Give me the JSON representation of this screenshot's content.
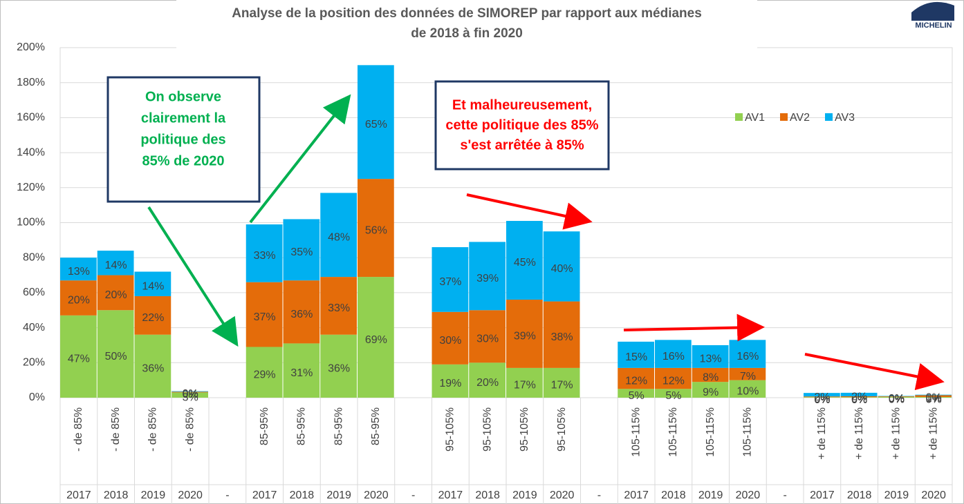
{
  "chart_data": {
    "type": "stacked_bar",
    "title": [
      "Analyse de la position des données de SIMOREP par rapport aux médianes",
      "de 2018 à fin 2020"
    ],
    "logo": "MICHELIN",
    "categories": [
      "- de 85%",
      "- de 85%",
      "- de 85%",
      "- de 85%",
      null,
      "85-95%",
      "85-95%",
      "85-95%",
      "85-95%",
      null,
      "95-105%",
      "95-105%",
      "95-105%",
      "95-105%",
      null,
      "105-115%",
      "105-115%",
      "105-115%",
      "105-115%",
      null,
      "+ de 115%",
      "+ de 115%",
      "+ de 115%",
      "+ de 115%"
    ],
    "category_years": [
      "2017",
      "2018",
      "2019",
      "2020",
      "-",
      "2017",
      "2018",
      "2019",
      "2020",
      "-",
      "2017",
      "2018",
      "2019",
      "2020",
      "-",
      "2017",
      "2018",
      "2019",
      "2020",
      "-",
      "2017",
      "2018",
      "2019",
      "2020"
    ],
    "series": [
      {
        "name": "AV1",
        "color": "#92d050",
        "values": [
          47,
          50,
          36,
          3,
          null,
          29,
          31,
          36,
          69,
          null,
          19,
          20,
          17,
          17,
          null,
          5,
          5,
          9,
          10,
          null,
          0.3,
          0.3,
          0.5,
          0.4
        ],
        "value_labels": [
          "47%",
          "50%",
          "36%",
          "3%",
          null,
          "29%",
          "31%",
          "36%",
          "69%",
          null,
          "19%",
          "20%",
          "17%",
          "17%",
          null,
          "5%",
          "5%",
          "9%",
          "10%",
          null,
          "0%",
          "0%",
          "0%",
          "0%"
        ]
      },
      {
        "name": "AV2",
        "color": "#e46c0a",
        "values": [
          20,
          20,
          22,
          0.4,
          null,
          37,
          36,
          33,
          56,
          null,
          30,
          30,
          39,
          38,
          null,
          12,
          12,
          8,
          7,
          null,
          0.4,
          0.5,
          0.3,
          1
        ],
        "value_labels": [
          "20%",
          "20%",
          "22%",
          "0%",
          null,
          "37%",
          "36%",
          "33%",
          "56%",
          null,
          "30%",
          "30%",
          "39%",
          "38%",
          null,
          "12%",
          "12%",
          "8%",
          "7%",
          null,
          "0%",
          "0%",
          "0%",
          "1%"
        ]
      },
      {
        "name": "AV3",
        "color": "#00b0f0",
        "values": [
          13,
          14,
          14,
          0.3,
          null,
          33,
          35,
          48,
          65,
          null,
          37,
          39,
          45,
          40,
          null,
          15,
          16,
          13,
          16,
          null,
          2,
          2,
          0.2,
          0.3
        ],
        "value_labels": [
          "13%",
          "14%",
          "14%",
          "0%",
          null,
          "33%",
          "35%",
          "48%",
          "65%",
          null,
          "37%",
          "39%",
          "45%",
          "40%",
          null,
          "15%",
          "16%",
          "13%",
          "16%",
          null,
          "2%",
          "2%",
          "0%",
          "0%"
        ]
      }
    ],
    "ylim": [
      0,
      200
    ],
    "yticks": [
      {
        "value": 0,
        "label": "0%"
      },
      {
        "value": 20,
        "label": "20%"
      },
      {
        "value": 40,
        "label": "40%"
      },
      {
        "value": 60,
        "label": "60%"
      },
      {
        "value": 80,
        "label": "80%"
      },
      {
        "value": 100,
        "label": "100%"
      },
      {
        "value": 120,
        "label": "120%"
      },
      {
        "value": 140,
        "label": "140%"
      },
      {
        "value": 160,
        "label": "160%"
      },
      {
        "value": 180,
        "label": "180%"
      },
      {
        "value": 200,
        "label": "200%"
      }
    ],
    "grid": true,
    "legend": "top-right",
    "annotations": [
      {
        "lines": [
          "On observe",
          "clairement la",
          "politique des",
          "85% de 2020"
        ],
        "color": "#00b050"
      },
      {
        "lines": [
          "Et malheureusement,",
          "cette politique des 85%",
          "s'est arrêtée à 85%"
        ],
        "color": "#ff0000"
      }
    ]
  }
}
